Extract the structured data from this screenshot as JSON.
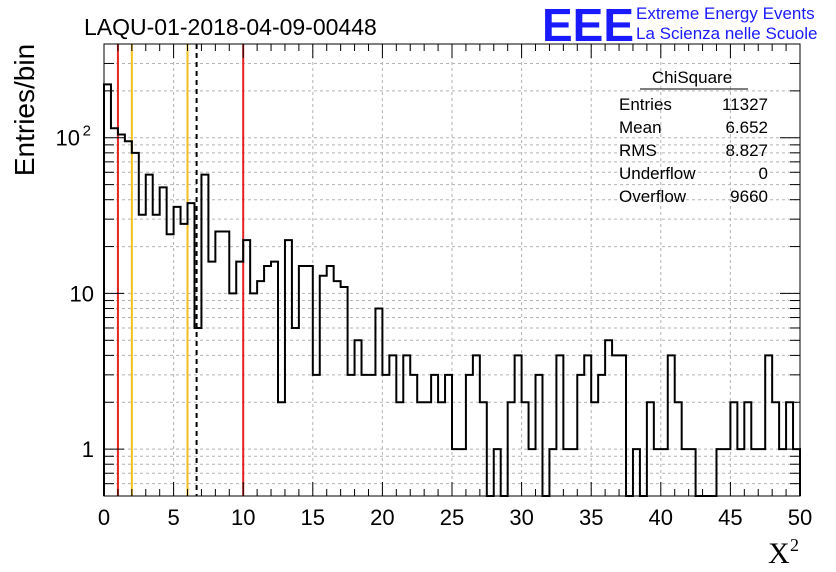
{
  "header": {
    "title": "LAQU-01-2018-04-09-00448",
    "logo_text": "EEE",
    "logo_line1": "Extreme Energy Events",
    "logo_line2": "La Scienza nelle Scuole"
  },
  "stats": {
    "name": "ChiSquare",
    "rows": [
      {
        "label": "Entries",
        "value": "11327"
      },
      {
        "label": "Mean",
        "value": "6.652"
      },
      {
        "label": "RMS",
        "value": "8.827"
      },
      {
        "label": "Underflow",
        "value": "0"
      },
      {
        "label": "Overflow",
        "value": "9660"
      }
    ]
  },
  "chart_data": {
    "type": "histogram",
    "ylabel": "Entries/bin",
    "xlabel": "X",
    "xlabel_superscript": "2",
    "xlim": [
      0,
      50
    ],
    "ylim": [
      0.5,
      400
    ],
    "y_scale": "log",
    "grid": true,
    "x_ticks": [
      0,
      5,
      10,
      15,
      20,
      25,
      30,
      35,
      40,
      45,
      50
    ],
    "y_ticks": [
      {
        "value": 1,
        "label": "1"
      },
      {
        "value": 10,
        "label": "10"
      },
      {
        "value": 100,
        "label": "10",
        "sup": "2"
      }
    ],
    "bin_width": 0.5,
    "values": [
      220,
      115,
      105,
      95,
      80,
      32,
      58,
      32,
      48,
      24,
      36,
      28,
      38,
      6,
      58,
      16,
      25,
      25,
      10,
      16,
      22,
      10,
      12,
      15,
      16,
      2,
      22,
      6,
      15,
      15,
      3,
      13,
      15,
      12,
      11,
      3,
      5,
      3,
      3,
      8,
      3,
      4,
      2,
      4,
      3,
      2,
      2,
      3,
      2,
      3,
      1,
      1,
      3,
      4,
      2,
      0,
      1,
      0,
      2,
      4,
      2,
      1,
      3,
      0,
      1,
      4,
      1,
      1,
      3,
      4,
      2,
      3,
      5,
      4,
      4,
      0,
      1,
      0,
      2,
      1,
      1,
      4,
      2,
      1,
      1,
      0,
      0,
      0,
      1,
      1,
      2,
      1,
      2,
      1,
      1,
      4,
      2,
      1,
      2,
      1
    ],
    "vertical_lines": [
      {
        "x": 1,
        "color": "#e8221c",
        "style": "solid"
      },
      {
        "x": 2,
        "color": "#f2c01e",
        "style": "solid"
      },
      {
        "x": 6,
        "color": "#f2c01e",
        "style": "solid"
      },
      {
        "x": 6.652,
        "color": "#000000",
        "style": "dashed"
      },
      {
        "x": 10,
        "color": "#e8221c",
        "style": "solid"
      }
    ]
  }
}
